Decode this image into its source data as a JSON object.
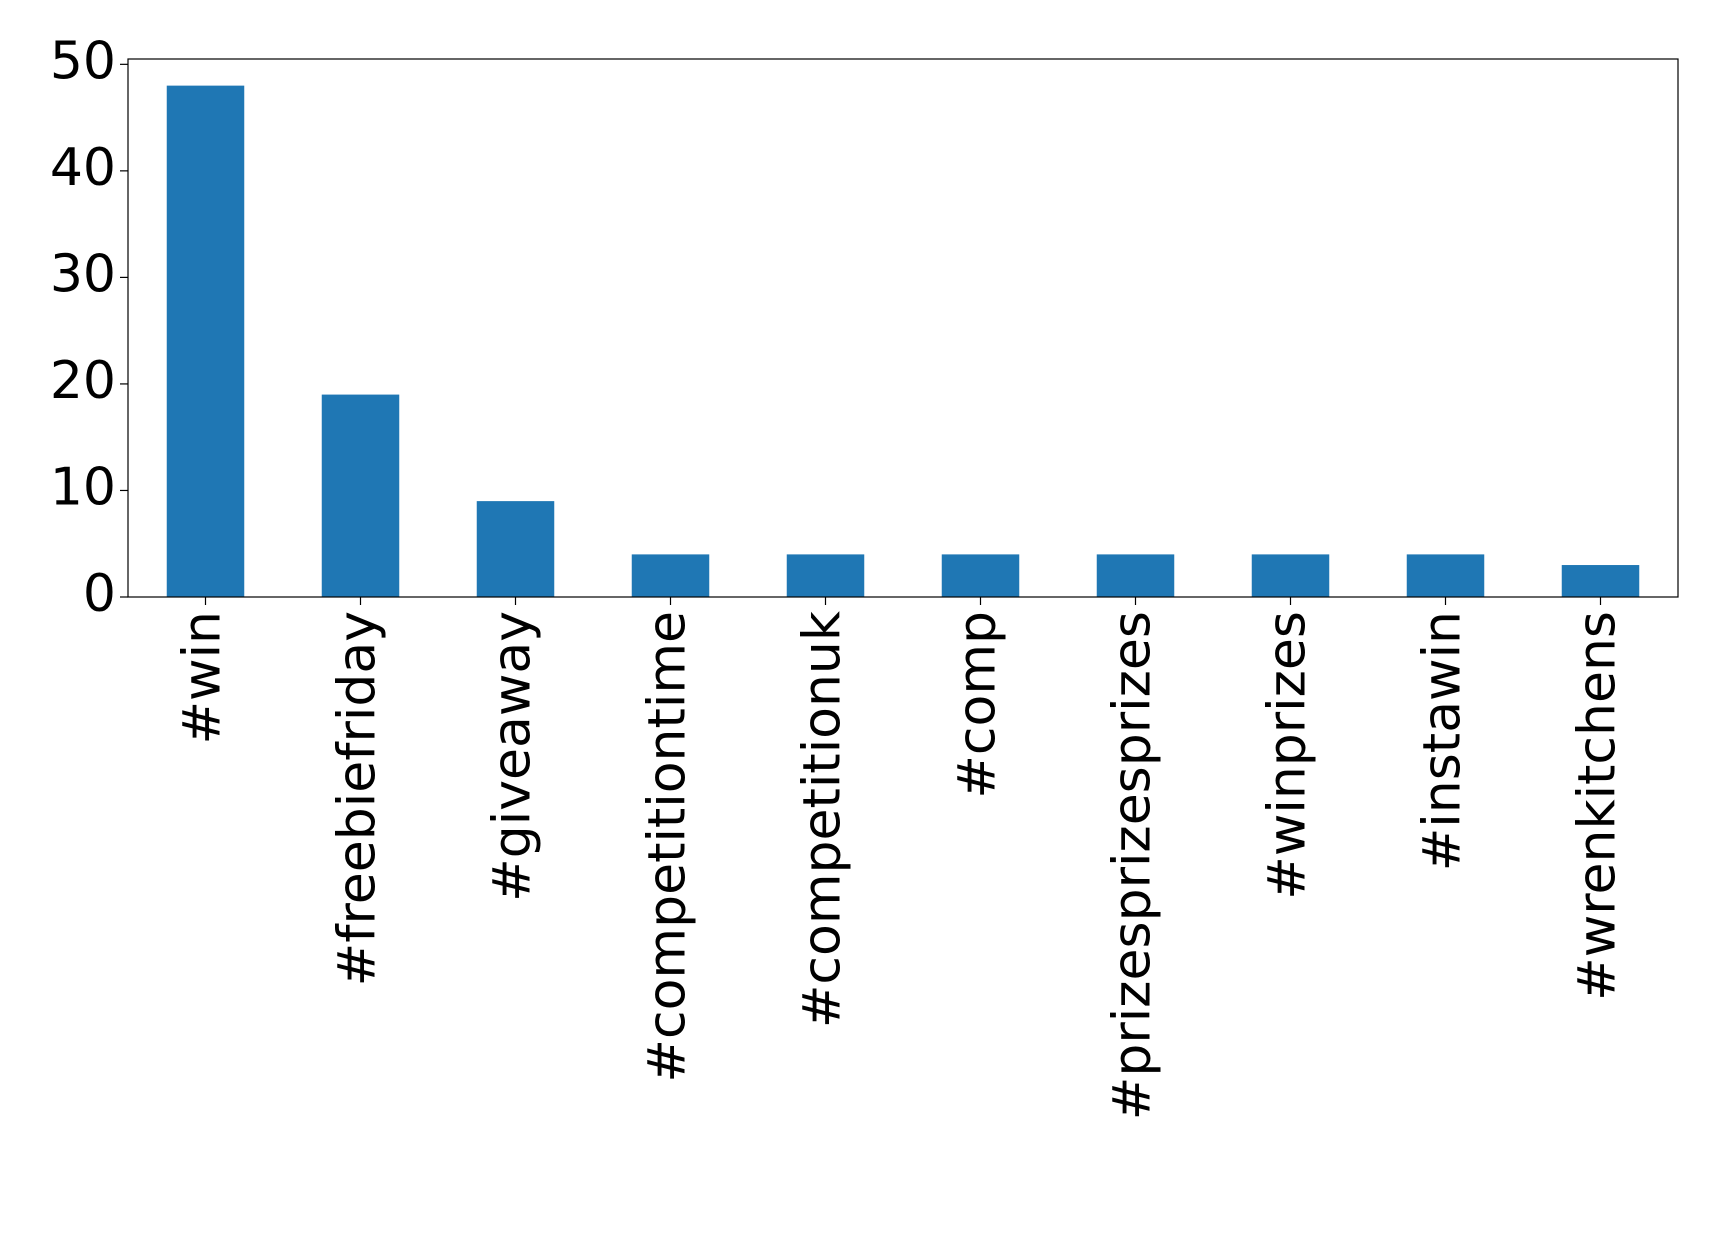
{
  "chart_data": {
    "type": "bar",
    "categories": [
      "#win",
      "#freebiefriday",
      "#giveaway",
      "#competitiontime",
      "#competitionuk",
      "#comp",
      "#prizesprizesprizes",
      "#winprizes",
      "#instawin",
      "#wrenkitchens"
    ],
    "values": [
      48,
      19,
      9,
      4,
      4,
      4,
      4,
      4,
      4,
      3
    ],
    "color": "#1f77b4",
    "ylim": [
      0,
      50.5
    ],
    "yticks": [
      0,
      10,
      20,
      30,
      40,
      50
    ],
    "grid": false
  }
}
